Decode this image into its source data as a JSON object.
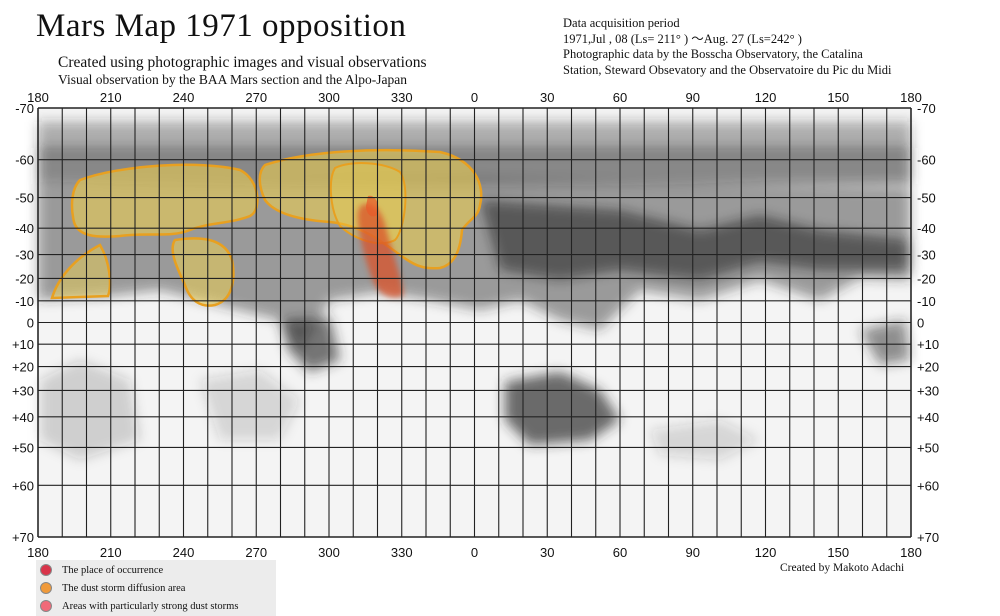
{
  "title": "Mars Map 1971   opposition",
  "subtitle": "Created using photographic images and visual observations",
  "subtitle2": "Visual observation by the BAA Mars section and the Alpo-Japan",
  "info": {
    "line1": "Data acquisition period",
    "line2": "1971,Jul , 08 (Ls= 211° ) ～Aug. 27   (Ls=242° )",
    "line3": "Photographic data by the Bosscha Observatory, the Catalina",
    "line4": "Station, Steward Obsevatory and the Observatoire du Pic du Midi"
  },
  "map": {
    "longitude_labels": [
      "180",
      "210",
      "240",
      "270",
      "300",
      "330",
      "0",
      "30",
      "60",
      "90",
      "120",
      "150",
      "180"
    ],
    "latitude_labels": [
      "-70",
      "-60",
      "-50",
      "-40",
      "-30",
      "-20",
      "-10",
      "0",
      "+10",
      "+20",
      "+30",
      "+40",
      "+50",
      "+60",
      "+70"
    ],
    "colors": {
      "diffusion_fill": "#f2d24a",
      "diffusion_outline": "#e8a020",
      "strong": "#d9532a",
      "grid": "#222222"
    }
  },
  "legend": {
    "items": [
      {
        "label": "The place of occurrence",
        "color": "#d9344a"
      },
      {
        "label": "The dust storm diffusion area",
        "color": "#f09a3a"
      },
      {
        "label": "Areas with particularly strong dust storms",
        "color": "#f06a78"
      }
    ]
  },
  "credit": "Created by Makoto Adachi"
}
